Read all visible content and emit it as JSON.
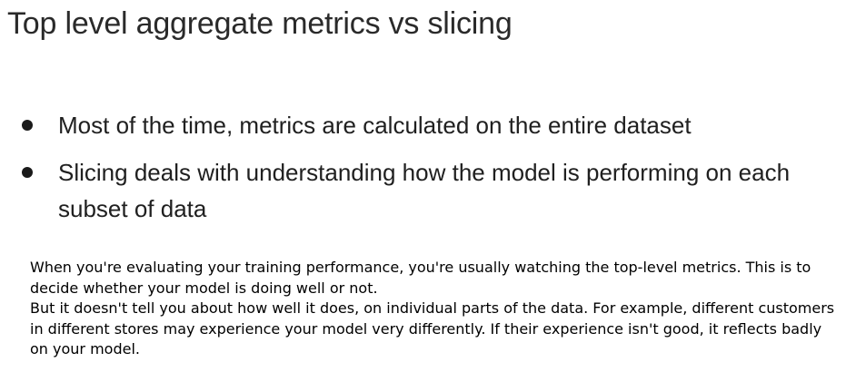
{
  "slide": {
    "title": "Top level aggregate metrics vs slicing",
    "bullets": [
      "Most of the time, metrics are calculated on the entire dataset",
      "Slicing deals with understanding how the model is performing on each subset of data"
    ]
  },
  "caption": {
    "paragraphs": [
      "When you're evaluating your training performance, you're usually watching the top-level metrics. This is to decide whether your model is doing well or not.",
      "But it doesn't tell you about how well it does, on individual parts of the data. For example, different customers in different stores may experience your model very differently. If their experience isn't good, it reflects badly on your model."
    ]
  }
}
